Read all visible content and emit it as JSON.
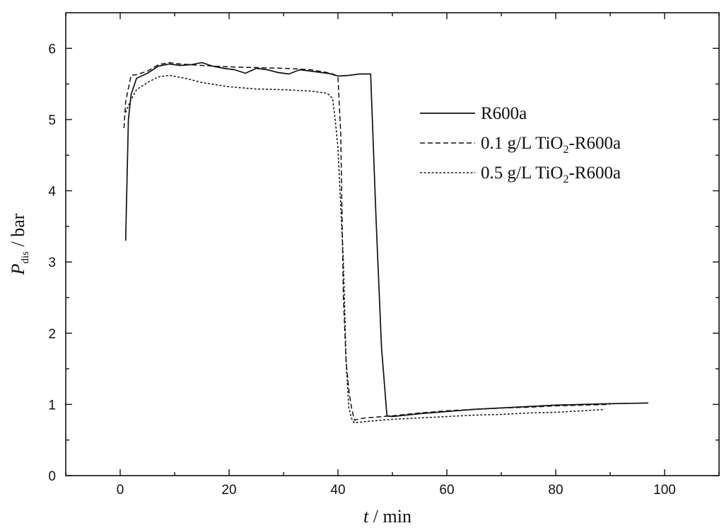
{
  "chart_data": {
    "type": "line",
    "title": "",
    "xlabel": {
      "var": "t",
      "unit": " / min"
    },
    "ylabel": {
      "var": "P",
      "sub": "dis",
      "unit": " / bar"
    },
    "xlim": [
      -10,
      110
    ],
    "ylim": [
      0,
      6.5
    ],
    "x_ticks": [
      0,
      20,
      40,
      60,
      80,
      100
    ],
    "y_ticks": [
      0,
      1,
      2,
      3,
      4,
      5,
      6
    ],
    "x_minor_ticks": [
      -10,
      10,
      30,
      50,
      70,
      90,
      110
    ],
    "y_minor_ticks": [
      0.5,
      1.5,
      2.5,
      3.5,
      4.5,
      5.5
    ],
    "grid": false,
    "legend": {
      "position": "right",
      "entries": [
        {
          "text": "R600a",
          "style": "solid"
        },
        {
          "text_parts": [
            [
              "0.1 g/L TiO",
              ""
            ],
            [
              "2",
              "sub"
            ],
            [
              "-R600a",
              ""
            ]
          ],
          "style": "dashed"
        },
        {
          "text_parts": [
            [
              "0.5 g/L TiO",
              ""
            ],
            [
              "2",
              "sub"
            ],
            [
              "-R600a",
              ""
            ]
          ],
          "style": "dotted"
        }
      ]
    },
    "series": [
      {
        "name": "R600a",
        "style": "solid",
        "x": [
          1,
          1.5,
          2,
          3,
          5,
          7,
          9,
          11,
          13,
          15,
          17,
          19,
          21,
          23,
          25,
          27,
          29,
          31,
          33,
          35,
          37,
          39,
          40,
          42,
          44,
          46,
          47,
          48,
          49,
          50,
          55,
          60,
          65,
          70,
          75,
          80,
          85,
          90,
          97
        ],
        "y": [
          3.3,
          5.0,
          5.35,
          5.58,
          5.65,
          5.75,
          5.78,
          5.76,
          5.77,
          5.8,
          5.75,
          5.72,
          5.7,
          5.65,
          5.72,
          5.7,
          5.66,
          5.64,
          5.7,
          5.68,
          5.66,
          5.64,
          5.61,
          5.62,
          5.64,
          5.64,
          3.6,
          1.8,
          0.84,
          0.83,
          0.87,
          0.9,
          0.93,
          0.95,
          0.97,
          0.99,
          1.0,
          1.01,
          1.02
        ]
      },
      {
        "name": "0.1 g/L TiO2-R600a",
        "style": "dashed",
        "x": [
          0.7,
          1,
          2,
          3,
          5,
          7,
          9,
          11,
          15,
          20,
          25,
          30,
          35,
          38,
          39.5,
          40,
          40.5,
          41,
          41.5,
          42,
          42.5,
          43,
          45,
          50,
          55,
          60,
          65,
          70,
          75,
          80,
          85,
          90
        ],
        "y": [
          4.88,
          5.25,
          5.62,
          5.63,
          5.68,
          5.77,
          5.8,
          5.78,
          5.76,
          5.74,
          5.73,
          5.72,
          5.7,
          5.66,
          5.62,
          5.6,
          4.8,
          2.5,
          1.6,
          1.2,
          0.95,
          0.78,
          0.81,
          0.84,
          0.88,
          0.91,
          0.93,
          0.95,
          0.96,
          0.98,
          0.99,
          1.0
        ]
      },
      {
        "name": "0.5 g/L TiO2-R600a",
        "style": "dotted",
        "x": [
          1,
          2,
          3,
          5,
          7,
          9,
          12,
          15,
          20,
          25,
          30,
          35,
          38,
          39,
          39.5,
          40,
          41,
          41.5,
          42,
          42.5,
          43,
          45,
          50,
          55,
          60,
          65,
          70,
          75,
          80,
          85,
          89
        ],
        "y": [
          5.1,
          5.28,
          5.42,
          5.52,
          5.6,
          5.62,
          5.58,
          5.52,
          5.46,
          5.43,
          5.42,
          5.4,
          5.37,
          5.3,
          5.0,
          4.6,
          3.0,
          1.6,
          0.95,
          0.8,
          0.74,
          0.76,
          0.79,
          0.81,
          0.83,
          0.85,
          0.86,
          0.88,
          0.89,
          0.91,
          0.93
        ]
      }
    ]
  }
}
